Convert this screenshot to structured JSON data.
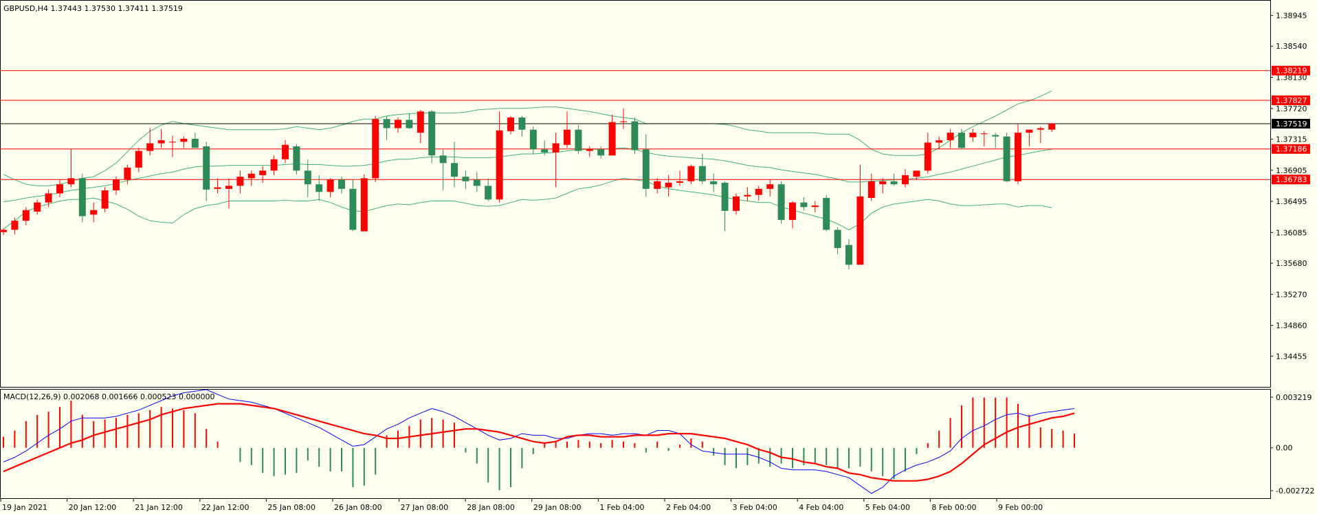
{
  "symbol_info": "GBPUSD,H4  1.37443 1.37530 1.37411 1.37519",
  "macd_info": "MACD(12,26,9) 0.002068 0.001666 0.000523 0.000000",
  "colors": {
    "background": "#fffff0",
    "bull": "#ff0000",
    "bear": "#2e8b57",
    "band": "#3cb371",
    "hline": "#ff0000",
    "macd_line": "#0000ff",
    "signal_line": "#ff0000"
  },
  "chart_data": [
    {
      "type": "candlestick",
      "name": "GBPUSD H4",
      "ylim": [
        1.3405,
        1.3914
      ],
      "price_ticks": [
        "1.38945",
        "1.38540",
        "1.38130",
        "1.37720",
        "1.37315",
        "1.36905",
        "1.36495",
        "1.36085",
        "1.35680",
        "1.35270",
        "1.34860",
        "1.34455"
      ],
      "current_price": "1.37519",
      "horizontal_levels": [
        "1.38219",
        "1.37827",
        "1.37186",
        "1.36783"
      ],
      "time_labels": [
        "19 Jan 2021",
        "20 Jan 12:00",
        "21 Jan 12:00",
        "22 Jan 12:00",
        "25 Jan 08:00",
        "26 Jan 08:00",
        "27 Jan 08:00",
        "28 Jan 08:00",
        "29 Jan 08:00",
        "1 Feb 04:00",
        "2 Feb 04:00",
        "3 Feb 04:00",
        "4 Feb 04:00",
        "5 Feb 04:00",
        "8 Feb 00:00",
        "9 Feb 00:00"
      ],
      "ohlc": [
        [
          1.3609,
          1.3614,
          1.3605,
          1.3612
        ],
        [
          1.3612,
          1.3628,
          1.3606,
          1.3624
        ],
        [
          1.3624,
          1.3642,
          1.3618,
          1.3638
        ],
        [
          1.3636,
          1.3652,
          1.3632,
          1.3648
        ],
        [
          1.3648,
          1.3665,
          1.3642,
          1.366
        ],
        [
          1.366,
          1.3678,
          1.3655,
          1.3672
        ],
        [
          1.3672,
          1.3718,
          1.3668,
          1.368
        ],
        [
          1.368,
          1.3686,
          1.3622,
          1.363
        ],
        [
          1.3632,
          1.3648,
          1.3622,
          1.3638
        ],
        [
          1.364,
          1.3668,
          1.3635,
          1.3664
        ],
        [
          1.3664,
          1.3682,
          1.3658,
          1.3678
        ],
        [
          1.3678,
          1.3698,
          1.3672,
          1.3694
        ],
        [
          1.3694,
          1.372,
          1.3688,
          1.3716
        ],
        [
          1.3716,
          1.3746,
          1.371,
          1.3726
        ],
        [
          1.3726,
          1.3745,
          1.372,
          1.373
        ],
        [
          1.3728,
          1.3736,
          1.3708,
          1.3728
        ],
        [
          1.3728,
          1.3735,
          1.372,
          1.3732
        ],
        [
          1.3732,
          1.374,
          1.3725,
          1.372
        ],
        [
          1.3722,
          1.3728,
          1.365,
          1.3665
        ],
        [
          1.3666,
          1.368,
          1.366,
          1.3668
        ],
        [
          1.3666,
          1.368,
          1.364,
          1.367
        ],
        [
          1.367,
          1.369,
          1.366,
          1.3682
        ],
        [
          1.368,
          1.369,
          1.367,
          1.3686
        ],
        [
          1.3684,
          1.3696,
          1.3674,
          1.369
        ],
        [
          1.369,
          1.371,
          1.3684,
          1.3705
        ],
        [
          1.3705,
          1.373,
          1.37,
          1.3724
        ],
        [
          1.3722,
          1.3725,
          1.3685,
          1.369
        ],
        [
          1.369,
          1.3705,
          1.3655,
          1.3672
        ],
        [
          1.3672,
          1.3684,
          1.365,
          1.3662
        ],
        [
          1.3662,
          1.368,
          1.3655,
          1.3678
        ],
        [
          1.3678,
          1.3682,
          1.366,
          1.3666
        ],
        [
          1.3666,
          1.3678,
          1.361,
          1.3612
        ],
        [
          1.361,
          1.3685,
          1.361,
          1.368
        ],
        [
          1.368,
          1.3762,
          1.3675,
          1.3758
        ],
        [
          1.3758,
          1.3762,
          1.373,
          1.3746
        ],
        [
          1.3746,
          1.376,
          1.374,
          1.3757
        ],
        [
          1.3757,
          1.3765,
          1.3745,
          1.3746
        ],
        [
          1.374,
          1.377,
          1.3726,
          1.3768
        ],
        [
          1.3768,
          1.377,
          1.37,
          1.371
        ],
        [
          1.371,
          1.3718,
          1.3664,
          1.37
        ],
        [
          1.37,
          1.3728,
          1.3668,
          1.3682
        ],
        [
          1.3682,
          1.369,
          1.3666,
          1.3676
        ],
        [
          1.3678,
          1.3688,
          1.3662,
          1.367
        ],
        [
          1.367,
          1.368,
          1.365,
          1.3652
        ],
        [
          1.3652,
          1.3768,
          1.3648,
          1.3743
        ],
        [
          1.3742,
          1.3762,
          1.3738,
          1.376
        ],
        [
          1.376,
          1.3762,
          1.3735,
          1.3744
        ],
        [
          1.3744,
          1.3748,
          1.3712,
          1.3718
        ],
        [
          1.3718,
          1.373,
          1.371,
          1.3714
        ],
        [
          1.3714,
          1.374,
          1.3668,
          1.3726
        ],
        [
          1.3724,
          1.3768,
          1.372,
          1.3744
        ],
        [
          1.3744,
          1.375,
          1.3712,
          1.3716
        ],
        [
          1.3716,
          1.3722,
          1.3708,
          1.3718
        ],
        [
          1.3718,
          1.3722,
          1.3706,
          1.371
        ],
        [
          1.371,
          1.3764,
          1.371,
          1.3754
        ],
        [
          1.3754,
          1.3772,
          1.3745,
          1.3755
        ],
        [
          1.3755,
          1.376,
          1.3712,
          1.3717
        ],
        [
          1.3718,
          1.3738,
          1.3656,
          1.3666
        ],
        [
          1.3666,
          1.368,
          1.366,
          1.3676
        ],
        [
          1.3668,
          1.3684,
          1.3656,
          1.3674
        ],
        [
          1.3674,
          1.369,
          1.367,
          1.3676
        ],
        [
          1.3676,
          1.3698,
          1.3672,
          1.3696
        ],
        [
          1.3696,
          1.3712,
          1.3672,
          1.3676
        ],
        [
          1.3676,
          1.3686,
          1.3662,
          1.3672
        ],
        [
          1.3674,
          1.3676,
          1.361,
          1.3637
        ],
        [
          1.3637,
          1.366,
          1.3632,
          1.3656
        ],
        [
          1.3656,
          1.3668,
          1.365,
          1.3658
        ],
        [
          1.3658,
          1.367,
          1.365,
          1.3666
        ],
        [
          1.3666,
          1.3678,
          1.3656,
          1.3672
        ],
        [
          1.3672,
          1.3676,
          1.362,
          1.3625
        ],
        [
          1.3625,
          1.365,
          1.3614,
          1.3648
        ],
        [
          1.3648,
          1.3655,
          1.3638,
          1.3642
        ],
        [
          1.3642,
          1.365,
          1.3635,
          1.3644
        ],
        [
          1.3654,
          1.3658,
          1.361,
          1.3612
        ],
        [
          1.3612,
          1.3615,
          1.358,
          1.3588
        ],
        [
          1.3592,
          1.36,
          1.356,
          1.3566
        ],
        [
          1.3566,
          1.3698,
          1.3566,
          1.3656
        ],
        [
          1.3654,
          1.3686,
          1.365,
          1.3676
        ],
        [
          1.3672,
          1.368,
          1.366,
          1.3676
        ],
        [
          1.3676,
          1.3686,
          1.367,
          1.3672
        ],
        [
          1.3672,
          1.3692,
          1.3668,
          1.3684
        ],
        [
          1.3682,
          1.369,
          1.3678,
          1.369
        ],
        [
          1.369,
          1.374,
          1.3686,
          1.3727
        ],
        [
          1.3727,
          1.3735,
          1.3718,
          1.373
        ],
        [
          1.373,
          1.3745,
          1.372,
          1.374
        ],
        [
          1.374,
          1.3745,
          1.3718,
          1.372
        ],
        [
          1.3734,
          1.3745,
          1.3728,
          1.374
        ],
        [
          1.3738,
          1.3742,
          1.3722,
          1.3739
        ],
        [
          1.3737,
          1.374,
          1.372,
          1.3735
        ],
        [
          1.3735,
          1.374,
          1.3675,
          1.3676
        ],
        [
          1.3676,
          1.3752,
          1.3672,
          1.374
        ],
        [
          1.374,
          1.3744,
          1.3722,
          1.3744
        ],
        [
          1.3744,
          1.3748,
          1.3726,
          1.3746
        ],
        [
          1.3744,
          1.3753,
          1.3741,
          1.3752
        ]
      ],
      "bands": {
        "upper": [
          1.3685,
          1.3678,
          1.3672,
          1.367,
          1.367,
          1.3672,
          1.3676,
          1.368,
          1.3682,
          1.369,
          1.37,
          1.3715,
          1.373,
          1.3742,
          1.375,
          1.3755,
          1.3752,
          1.375,
          1.3748,
          1.3746,
          1.3744,
          1.3744,
          1.3744,
          1.3744,
          1.3744,
          1.3745,
          1.3748,
          1.3746,
          1.3744,
          1.3746,
          1.375,
          1.3755,
          1.3758,
          1.3758,
          1.3762,
          1.3764,
          1.3765,
          1.3766,
          1.3766,
          1.3766,
          1.3766,
          1.3767,
          1.377,
          1.3771,
          1.3772,
          1.3772,
          1.3772,
          1.3773,
          1.3774,
          1.3774,
          1.3772,
          1.377,
          1.3768,
          1.3765,
          1.3762,
          1.376,
          1.3758,
          1.3752,
          1.3752,
          1.3752,
          1.3752,
          1.3752,
          1.3752,
          1.3752,
          1.3751,
          1.3748,
          1.3744,
          1.3742,
          1.374,
          1.374,
          1.374,
          1.374,
          1.374,
          1.3738,
          1.3738,
          1.3738,
          1.373,
          1.3718,
          1.3712,
          1.371,
          1.371,
          1.371,
          1.3712,
          1.372,
          1.373,
          1.374,
          1.3748,
          1.3755,
          1.3762,
          1.377,
          1.3778,
          1.3782,
          1.3788,
          1.3795
        ],
        "middle": [
          1.3649,
          1.3651,
          1.3654,
          1.3656,
          1.3658,
          1.3661,
          1.3664,
          1.3666,
          1.3668,
          1.367,
          1.3673,
          1.3677,
          1.368,
          1.3683,
          1.3686,
          1.3688,
          1.3692,
          1.3695,
          1.3696,
          1.3696,
          1.3697,
          1.3697,
          1.3697,
          1.3697,
          1.3697,
          1.3698,
          1.3699,
          1.3698,
          1.3698,
          1.3697,
          1.3696,
          1.3696,
          1.3697,
          1.3699,
          1.3703,
          1.3705,
          1.3705,
          1.3707,
          1.3708,
          1.3708,
          1.3708,
          1.3707,
          1.3707,
          1.3707,
          1.3708,
          1.371,
          1.3712,
          1.3712,
          1.3713,
          1.3714,
          1.3716,
          1.3718,
          1.3718,
          1.3718,
          1.3719,
          1.372,
          1.3718,
          1.3714,
          1.3711,
          1.3709,
          1.3708,
          1.3707,
          1.3706,
          1.3705,
          1.3703,
          1.37,
          1.3697,
          1.3695,
          1.3694,
          1.3691,
          1.3689,
          1.3687,
          1.3685,
          1.3682,
          1.3679,
          1.3675,
          1.3675,
          1.3676,
          1.3677,
          1.3678,
          1.3679,
          1.368,
          1.3682,
          1.3685,
          1.3688,
          1.3692,
          1.3696,
          1.37,
          1.3704,
          1.3708,
          1.371,
          1.3713,
          1.3716,
          1.3718
        ],
        "lower": [
          1.3613,
          1.3624,
          1.3636,
          1.3642,
          1.3646,
          1.365,
          1.3652,
          1.3652,
          1.3654,
          1.365,
          1.3646,
          1.3639,
          1.363,
          1.3624,
          1.3622,
          1.3621,
          1.3632,
          1.364,
          1.3644,
          1.3646,
          1.365,
          1.365,
          1.365,
          1.365,
          1.365,
          1.3651,
          1.365,
          1.365,
          1.3652,
          1.3648,
          1.3642,
          1.3637,
          1.3636,
          1.364,
          1.3644,
          1.3646,
          1.3645,
          1.3648,
          1.365,
          1.365,
          1.365,
          1.3647,
          1.3644,
          1.3643,
          1.3644,
          1.3648,
          1.3652,
          1.3651,
          1.3652,
          1.3654,
          1.366,
          1.3666,
          1.3668,
          1.3671,
          1.3676,
          1.368,
          1.3678,
          1.3676,
          1.367,
          1.3666,
          1.3664,
          1.3662,
          1.366,
          1.3658,
          1.3655,
          1.3652,
          1.365,
          1.3648,
          1.3648,
          1.3642,
          1.3638,
          1.3634,
          1.363,
          1.3626,
          1.362,
          1.3612,
          1.362,
          1.3634,
          1.3642,
          1.3646,
          1.3648,
          1.365,
          1.3652,
          1.365,
          1.3646,
          1.3644,
          1.3644,
          1.3645,
          1.3646,
          1.3646,
          1.3642,
          1.3644,
          1.3644,
          1.3641
        ]
      }
    },
    {
      "type": "macd",
      "name": "MACD(12,26,9)",
      "ylim": [
        -0.0032,
        0.0037
      ],
      "ticks": [
        "0.003219",
        "0.00",
        "-0.002722"
      ],
      "histogram": [
        0.0007,
        0.0011,
        0.0017,
        0.0021,
        0.0023,
        0.0026,
        0.003,
        0.0021,
        0.0017,
        0.0018,
        0.0019,
        0.0021,
        0.0022,
        0.0024,
        0.0026,
        0.0025,
        0.0024,
        0.0022,
        0.0012,
        0.0004,
        0,
        -0.0009,
        -0.0011,
        -0.0016,
        -0.0018,
        -0.0017,
        -0.0016,
        -0.0008,
        -0.0012,
        -0.0015,
        -0.0015,
        -0.0025,
        -0.0024,
        -0.0017,
        0.0008,
        0.0011,
        0.0014,
        0.0018,
        0.0019,
        0.0018,
        0.0016,
        -0.0003,
        -0.001,
        -0.0022,
        -0.0027,
        -0.0025,
        -0.0013,
        -0.0004,
        0.0003,
        0.0004,
        0.0004,
        0.0005,
        0.0004,
        0.0003,
        0.0005,
        0.0004,
        0.0003,
        -0.0003,
        0.0004,
        -0.0002,
        0.0002,
        0.0006,
        0.0004,
        -0.0005,
        -0.0011,
        -0.0013,
        -0.0011,
        -0.001,
        -0.0012,
        -0.001,
        -0.0013,
        -0.0011,
        -0.001,
        -0.0011,
        -0.0013,
        -0.0013,
        -0.0012,
        -0.0015,
        -0.0018,
        -0.002,
        -0.0015,
        -0.0004,
        0.0003,
        0.0011,
        0.0019,
        0.0027,
        0.0032,
        0.0032,
        0.0032,
        0.0032,
        0.0028,
        0.0021,
        0.0013,
        0.0012,
        0.0011,
        0.0009
      ],
      "macd": [
        -0.0009,
        -0.0006,
        -0.0002,
        0.0003,
        0.0008,
        0.0012,
        0.0017,
        0.0019,
        0.0019,
        0.0019,
        0.002,
        0.0022,
        0.0024,
        0.0027,
        0.003,
        0.0033,
        0.0035,
        0.0036,
        0.0037,
        0.0034,
        0.0031,
        0.003,
        0.0029,
        0.0027,
        0.0025,
        0.0022,
        0.0019,
        0.0016,
        0.0013,
        0.0009,
        0.0005,
        0.0001,
        0.0002,
        0.0007,
        0.0012,
        0.0015,
        0.0019,
        0.0022,
        0.0025,
        0.0023,
        0.002,
        0.0016,
        0.0012,
        0.0008,
        0.0005,
        0.0006,
        0.0009,
        0.0008,
        0.0008,
        0.0006,
        0.0006,
        0.0008,
        0.0009,
        0.0009,
        0.0008,
        0.0009,
        0.0009,
        0.0008,
        0.0011,
        0.0011,
        0.0009,
        0.0002,
        -0.0002,
        -0.0003,
        -0.0004,
        -0.0004,
        -0.0004,
        -0.0006,
        -0.0009,
        -0.0013,
        -0.0014,
        -0.0014,
        -0.0014,
        -0.0015,
        -0.0017,
        -0.0019,
        -0.0024,
        -0.0029,
        -0.0025,
        -0.0018,
        -0.0014,
        -0.0011,
        -0.0009,
        -0.0006,
        -0.0002,
        0.0006,
        0.0011,
        0.0014,
        0.0018,
        0.0021,
        0.0022,
        0.002,
        0.0022,
        0.0023,
        0.0024,
        0.0025
      ],
      "signal": [
        -0.0015,
        -0.0012,
        -0.0009,
        -0.0006,
        -0.0003,
        0,
        0.0003,
        0.0005,
        0.0008,
        0.001,
        0.0012,
        0.0014,
        0.0016,
        0.0018,
        0.0021,
        0.0023,
        0.0025,
        0.0026,
        0.0027,
        0.0028,
        0.0028,
        0.0028,
        0.0027,
        0.0026,
        0.0025,
        0.0023,
        0.0021,
        0.0019,
        0.0017,
        0.0015,
        0.0013,
        0.0011,
        0.0009,
        0.0008,
        0.0006,
        0.0006,
        0.0007,
        0.0008,
        0.0009,
        0.001,
        0.0011,
        0.0012,
        0.0012,
        0.0011,
        0.001,
        0.0008,
        0.0006,
        0.0004,
        0.0003,
        0.0004,
        0.0007,
        0.0008,
        0.0008,
        0.0007,
        0.0007,
        0.0007,
        0.0008,
        0.0008,
        0.0008,
        0.0009,
        0.0009,
        0.0009,
        0.0008,
        0.0007,
        0.0006,
        0.0004,
        0.0002,
        -0.0001,
        -0.0003,
        -0.0006,
        -0.0007,
        -0.0009,
        -0.001,
        -0.0012,
        -0.0013,
        -0.0016,
        -0.0017,
        -0.0019,
        -0.002,
        -0.0021,
        -0.0021,
        -0.0021,
        -0.002,
        -0.0018,
        -0.0015,
        -0.001,
        -0.0004,
        0.0002,
        0.0006,
        0.001,
        0.0013,
        0.0015,
        0.0017,
        0.0019,
        0.002,
        0.0022
      ]
    }
  ]
}
